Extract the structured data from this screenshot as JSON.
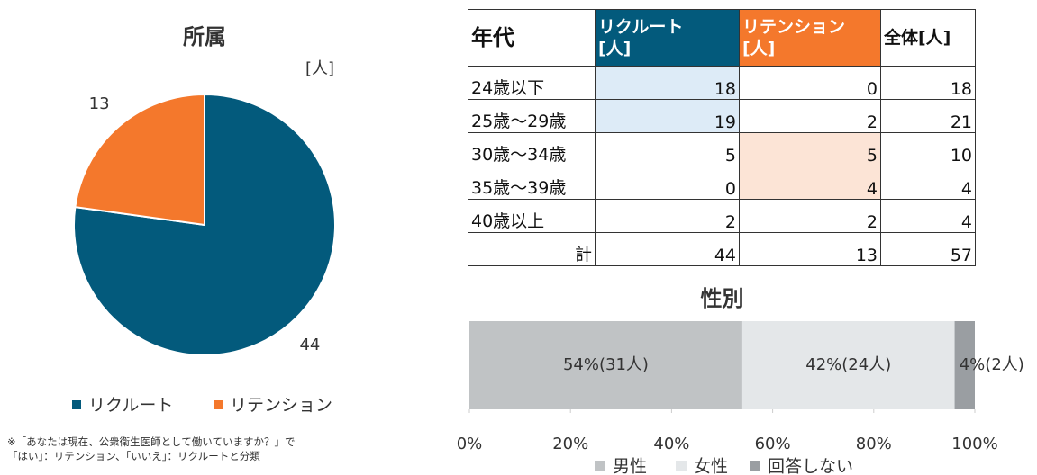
{
  "chart_data": [
    {
      "type": "pie",
      "title": "所属",
      "unit": "[人]",
      "categories": [
        "リクルート",
        "リテンション"
      ],
      "values": [
        44,
        13
      ],
      "colors": [
        "#035a7c",
        "#f4782c"
      ],
      "legend": "bottom"
    },
    {
      "type": "stacked_bar",
      "title": "性別",
      "series": [
        {
          "name": "男性",
          "color": "#c0c3c5",
          "values": [
            54
          ],
          "value_labels": [
            "54%(31人)"
          ]
        },
        {
          "name": "女性",
          "color": "#e4e7e9",
          "values": [
            42
          ],
          "value_labels": [
            "42%(24人)"
          ]
        },
        {
          "name": "回答しない",
          "color": "#9a9ea2",
          "values": [
            4
          ],
          "value_labels": [
            "4%(2人)"
          ]
        }
      ],
      "xlim": [
        0,
        100
      ],
      "xticks": [
        {
          "value": 0,
          "label": "0%"
        },
        {
          "value": 20,
          "label": "20%"
        },
        {
          "value": 40,
          "label": "40%"
        },
        {
          "value": 60,
          "label": "60%"
        },
        {
          "value": 80,
          "label": "80%"
        },
        {
          "value": 100,
          "label": "100%"
        }
      ],
      "legend": "bottom"
    }
  ],
  "table": {
    "header": [
      "年代",
      "リクルート\n[人]",
      "リテンション\n[人]",
      "全体[人]"
    ],
    "header_colors": [
      null,
      "#035a7c",
      "#f4782c",
      null
    ],
    "rows": [
      [
        "24歳以下",
        18,
        0,
        18
      ],
      [
        "25歳～29歳",
        19,
        2,
        21
      ],
      [
        "30歳～34歳",
        5,
        5,
        10
      ],
      [
        "35歳～39歳",
        0,
        4,
        4
      ],
      [
        "40歳以上",
        2,
        2,
        4
      ],
      [
        "計",
        44,
        13,
        57
      ]
    ],
    "highlights": [
      {
        "row": 0,
        "col": 1,
        "color": "#ddebf7"
      },
      {
        "row": 1,
        "col": 1,
        "color": "#ddebf7"
      },
      {
        "row": 2,
        "col": 2,
        "color": "#fce4d6"
      },
      {
        "row": 3,
        "col": 2,
        "color": "#fce4d6"
      }
    ]
  },
  "note": "※「あなたは現在、公衆衛生医師として働いていますか？」で\n「はい」：リテンション、「いいえ」：リクルートと分類"
}
